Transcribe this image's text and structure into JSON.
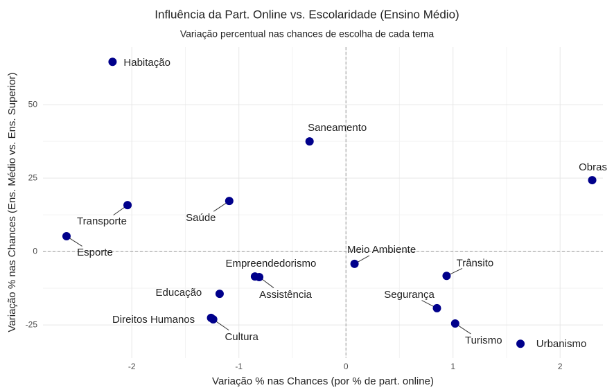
{
  "chart_data": {
    "type": "scatter",
    "title": "Influência da Part. Online vs. Escolaridade (Ensino Médio)",
    "subtitle": "Variação percentual nas chances de escolha de cada tema",
    "x_label": "Variação % nas Chances (por % de part. online)",
    "y_label": "Variação % nas Chances (Ens. Médio vs. Ens. Superior)",
    "labels": [
      "Habitação",
      "Saneamento",
      "Obras",
      "Transporte",
      "Saúde",
      "Esporte",
      "Meio Ambiente",
      "Empreendedorismo",
      "Assistência",
      "Trânsito",
      "Educação",
      "Segurança",
      "Direitos Humanos",
      "Cultura",
      "Turismo",
      "Urbanismo"
    ],
    "x": [
      -2.18,
      -0.34,
      2.3,
      -2.04,
      -1.09,
      -2.61,
      0.08,
      -0.85,
      -0.81,
      0.94,
      -1.18,
      0.85,
      -1.26,
      -1.24,
      1.02,
      1.63
    ],
    "values": [
      64.6,
      37.5,
      24.3,
      15.8,
      17.2,
      5.2,
      -4.2,
      -8.5,
      -8.7,
      -8.3,
      -14.4,
      -19.3,
      -22.6,
      -23.1,
      -24.5,
      -31.4
    ],
    "color": "#00008b",
    "xlim": [
      -2.83,
      2.4
    ],
    "xticks": [
      -2,
      -1,
      0,
      1,
      2
    ],
    "ylim": [
      -36.3,
      69.6
    ],
    "yticks": [
      -25,
      0,
      25,
      50
    ],
    "grid": true
  }
}
